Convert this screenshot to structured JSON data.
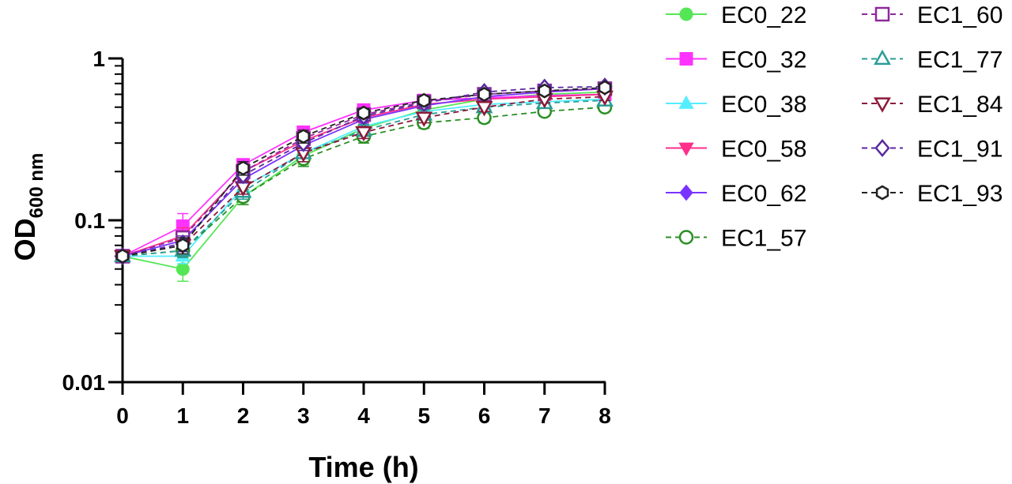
{
  "chart_data": {
    "type": "line",
    "xlabel": "Time (h)",
    "ylabel": {
      "main": "OD",
      "sub": "600 nm"
    },
    "y_scale": "log",
    "xlim": [
      0,
      8
    ],
    "ylim": [
      0.01,
      1
    ],
    "x_ticks": [
      "0",
      "1",
      "2",
      "3",
      "4",
      "5",
      "6",
      "7",
      "8"
    ],
    "y_ticks": [
      {
        "value": 0.01,
        "label": "0.01"
      },
      {
        "value": 0.1,
        "label": "0.1"
      },
      {
        "value": 1,
        "label": "1"
      }
    ],
    "grid": false,
    "legend_position": "right",
    "x": [
      0,
      1,
      2,
      3,
      4,
      5,
      6,
      7,
      8
    ],
    "series": [
      {
        "name": "EC0_22",
        "color": "#55e655",
        "marker": "circle",
        "filled": true,
        "dashed": false,
        "values": [
          0.06,
          0.05,
          0.14,
          0.25,
          0.37,
          0.48,
          0.56,
          0.6,
          0.62
        ],
        "err": [
          0.002,
          0.008,
          0.015,
          0.03,
          0.03,
          0.03,
          0.03,
          0.03,
          0.03
        ]
      },
      {
        "name": "EC0_32",
        "color": "#ff33ff",
        "marker": "square",
        "filled": true,
        "dashed": false,
        "values": [
          0.06,
          0.092,
          0.22,
          0.35,
          0.48,
          0.55,
          0.57,
          0.59,
          0.6
        ],
        "err": [
          0.002,
          0.018,
          0.02,
          0.03,
          0.03,
          0.03,
          0.03,
          0.03,
          0.03
        ]
      },
      {
        "name": "EC0_38",
        "color": "#55eeff",
        "marker": "triangle-up",
        "filled": true,
        "dashed": false,
        "values": [
          0.06,
          0.06,
          0.16,
          0.26,
          0.38,
          0.47,
          0.52,
          0.54,
          0.56
        ],
        "err": [
          0.002,
          0.006,
          0.015,
          0.03,
          0.03,
          0.03,
          0.03,
          0.03,
          0.03
        ]
      },
      {
        "name": "EC0_58",
        "color": "#ff2e8a",
        "marker": "triangle-down",
        "filled": true,
        "dashed": false,
        "values": [
          0.06,
          0.08,
          0.2,
          0.31,
          0.43,
          0.52,
          0.56,
          0.58,
          0.6
        ],
        "err": [
          0.002,
          0.01,
          0.02,
          0.03,
          0.03,
          0.03,
          0.03,
          0.03,
          0.03
        ]
      },
      {
        "name": "EC0_62",
        "color": "#7a33ff",
        "marker": "diamond",
        "filled": true,
        "dashed": false,
        "values": [
          0.06,
          0.075,
          0.18,
          0.29,
          0.42,
          0.51,
          0.58,
          0.62,
          0.65
        ],
        "err": [
          0.002,
          0.008,
          0.02,
          0.03,
          0.03,
          0.03,
          0.03,
          0.03,
          0.03
        ]
      },
      {
        "name": "EC1_57",
        "color": "#2a8f24",
        "marker": "circle",
        "filled": false,
        "dashed": true,
        "values": [
          0.06,
          0.065,
          0.14,
          0.24,
          0.33,
          0.4,
          0.43,
          0.47,
          0.5
        ],
        "err": [
          0.002,
          0.006,
          0.015,
          0.025,
          0.03,
          0.03,
          0.03,
          0.03,
          0.03
        ]
      },
      {
        "name": "EC1_60",
        "color": "#8e2a9a",
        "marker": "square",
        "filled": false,
        "dashed": true,
        "values": [
          0.06,
          0.078,
          0.2,
          0.32,
          0.45,
          0.54,
          0.6,
          0.63,
          0.65
        ],
        "err": [
          0.002,
          0.008,
          0.02,
          0.03,
          0.03,
          0.03,
          0.03,
          0.03,
          0.03
        ]
      },
      {
        "name": "EC1_77",
        "color": "#2a9d96",
        "marker": "triangle-up",
        "filled": false,
        "dashed": true,
        "values": [
          0.06,
          0.065,
          0.15,
          0.26,
          0.36,
          0.45,
          0.5,
          0.53,
          0.55
        ],
        "err": [
          0.002,
          0.006,
          0.015,
          0.03,
          0.03,
          0.03,
          0.03,
          0.03,
          0.03
        ]
      },
      {
        "name": "EC1_84",
        "color": "#8b1a3a",
        "marker": "triangle-down",
        "filled": false,
        "dashed": true,
        "values": [
          0.06,
          0.07,
          0.16,
          0.26,
          0.35,
          0.43,
          0.5,
          0.56,
          0.58
        ],
        "err": [
          0.002,
          0.006,
          0.015,
          0.03,
          0.03,
          0.03,
          0.03,
          0.03,
          0.03
        ]
      },
      {
        "name": "EC1_91",
        "color": "#5a2aa0",
        "marker": "diamond",
        "filled": false,
        "dashed": true,
        "values": [
          0.06,
          0.072,
          0.19,
          0.3,
          0.44,
          0.53,
          0.62,
          0.66,
          0.67
        ],
        "err": [
          0.002,
          0.008,
          0.02,
          0.03,
          0.03,
          0.03,
          0.03,
          0.03,
          0.03
        ]
      },
      {
        "name": "EC1_93",
        "color": "#222222",
        "marker": "hexagon",
        "filled": false,
        "dashed": true,
        "values": [
          0.06,
          0.07,
          0.21,
          0.33,
          0.46,
          0.55,
          0.6,
          0.63,
          0.66
        ],
        "err": [
          0.002,
          0.008,
          0.02,
          0.03,
          0.03,
          0.03,
          0.03,
          0.03,
          0.03
        ]
      }
    ]
  }
}
